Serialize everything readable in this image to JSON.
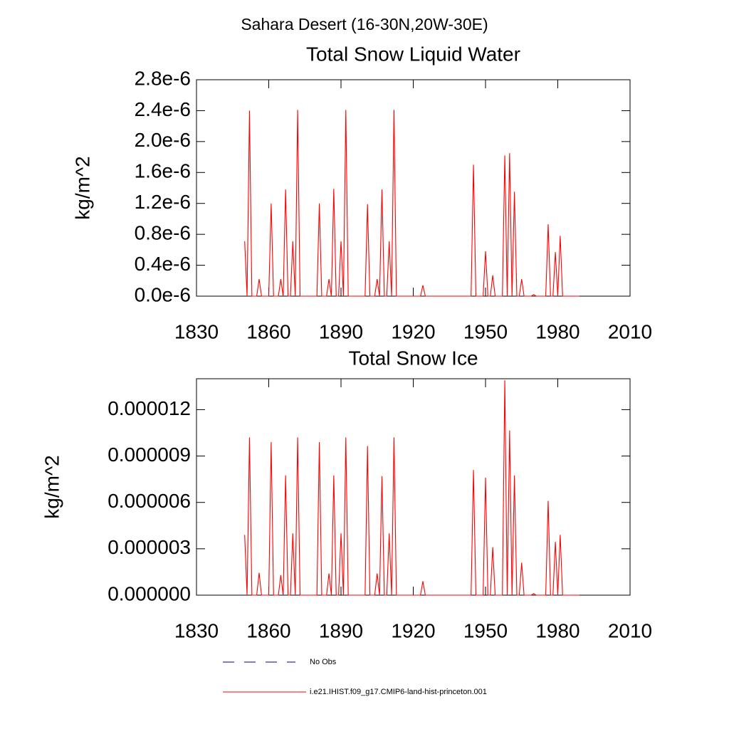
{
  "title": "Sahara Desert (16-30N,20W-30E)",
  "legend": {
    "entries": [
      {
        "name": "No Obs",
        "color": "#000080",
        "style": "dashed"
      },
      {
        "name": "i.e21.IHIST.f09_g17.CMIP6-land-hist-princeton.001",
        "color": "#ff0000",
        "style": "solid"
      }
    ]
  },
  "chart_data": [
    {
      "type": "line",
      "title": "Total Snow Liquid Water",
      "y_label": "kg/m^2",
      "color": "#ff0000",
      "xlim": [
        1830,
        2010
      ],
      "xticks": [
        1830,
        1860,
        1890,
        1920,
        1950,
        1980,
        2010
      ],
      "ylim": [
        0,
        2.8e-06
      ],
      "yticks": [
        {
          "value": 0,
          "label": "0.0e-6"
        },
        {
          "value": 4e-07,
          "label": "0.4e-6"
        },
        {
          "value": 8e-07,
          "label": "0.8e-6"
        },
        {
          "value": 1.2e-06,
          "label": "1.2e-6"
        },
        {
          "value": 1.6e-06,
          "label": "1.6e-6"
        },
        {
          "value": 2e-06,
          "label": "2.0e-6"
        },
        {
          "value": 2.4e-06,
          "label": "2.4e-6"
        },
        {
          "value": 2.8e-06,
          "label": "2.8e-6"
        }
      ],
      "x": [
        1850,
        1851,
        1852,
        1853,
        1854,
        1855,
        1856,
        1857,
        1858,
        1859,
        1860,
        1861,
        1862,
        1863,
        1864,
        1865,
        1866,
        1867,
        1868,
        1869,
        1870,
        1871,
        1872,
        1873,
        1874,
        1875,
        1876,
        1877,
        1878,
        1879,
        1880,
        1881,
        1882,
        1883,
        1884,
        1885,
        1886,
        1887,
        1888,
        1889,
        1890,
        1891,
        1892,
        1893,
        1894,
        1895,
        1896,
        1897,
        1898,
        1899,
        1900,
        1901,
        1902,
        1903,
        1904,
        1905,
        1906,
        1907,
        1908,
        1909,
        1910,
        1911,
        1912,
        1913,
        1914,
        1915,
        1916,
        1917,
        1918,
        1919,
        1920,
        1921,
        1922,
        1923,
        1924,
        1925,
        1926,
        1927,
        1928,
        1929,
        1930,
        1931,
        1932,
        1933,
        1934,
        1935,
        1936,
        1937,
        1938,
        1939,
        1940,
        1941,
        1942,
        1943,
        1944,
        1945,
        1946,
        1947,
        1948,
        1949,
        1950,
        1951,
        1952,
        1953,
        1954,
        1955,
        1956,
        1957,
        1958,
        1959,
        1960,
        1961,
        1962,
        1963,
        1964,
        1965,
        1966,
        1967,
        1968,
        1969,
        1970,
        1971,
        1972,
        1973,
        1974,
        1975,
        1976,
        1977,
        1978,
        1979,
        1980,
        1981,
        1982,
        1983,
        1984,
        1985,
        1986,
        1987,
        1988,
        1989
      ],
      "values": [
        7.1e-07,
        0,
        2.4e-06,
        0,
        0,
        0,
        2.2e-07,
        0,
        0,
        0,
        0,
        1.2e-06,
        0,
        0,
        0,
        2.2e-07,
        0,
        1.38e-06,
        0,
        0,
        7.1e-07,
        0,
        2.41e-06,
        0,
        0,
        0,
        0,
        0,
        0,
        0,
        0,
        1.2e-06,
        0,
        0,
        0,
        2.2e-07,
        0,
        1.39e-06,
        0,
        0,
        7.1e-07,
        0,
        2.41e-06,
        0,
        0,
        0,
        0,
        0,
        0,
        0,
        0,
        1.19e-06,
        0,
        0,
        0,
        2.2e-07,
        0,
        1.38e-06,
        0,
        0,
        7.1e-07,
        0,
        2.41e-06,
        0,
        0,
        0,
        0,
        0,
        0,
        0,
        0,
        0,
        0,
        0,
        1.4e-07,
        0,
        0,
        0,
        0,
        0,
        0,
        0,
        0,
        0,
        0,
        0,
        0,
        0,
        0,
        0,
        0,
        0,
        0,
        0,
        0,
        1.7e-06,
        0,
        0,
        0,
        0,
        5.8e-07,
        0,
        0,
        2.7e-07,
        0,
        0,
        0,
        0,
        1.82e-06,
        0,
        1.85e-06,
        0,
        1.35e-06,
        0,
        0,
        2.2e-07,
        0,
        0,
        0,
        0,
        2e-08,
        0,
        0,
        0,
        0,
        0,
        9.3e-07,
        0,
        0,
        5.7e-07,
        0,
        7.8e-07,
        0,
        0,
        0,
        0,
        0,
        0,
        0,
        0
      ]
    },
    {
      "type": "line",
      "title": "Total Snow Ice",
      "y_label": "kg/m^2",
      "color": "#ff0000",
      "xlim": [
        1830,
        2010
      ],
      "xticks": [
        1830,
        1860,
        1890,
        1920,
        1950,
        1980,
        2010
      ],
      "ylim": [
        0,
        1.4e-05
      ],
      "yticks": [
        {
          "value": 0,
          "label": "0.000000"
        },
        {
          "value": 3e-06,
          "label": "0.000003"
        },
        {
          "value": 6e-06,
          "label": "0.000006"
        },
        {
          "value": 9e-06,
          "label": "0.000009"
        },
        {
          "value": 1.2e-05,
          "label": "0.000012"
        }
      ],
      "x": [
        1850,
        1851,
        1852,
        1853,
        1854,
        1855,
        1856,
        1857,
        1858,
        1859,
        1860,
        1861,
        1862,
        1863,
        1864,
        1865,
        1866,
        1867,
        1868,
        1869,
        1870,
        1871,
        1872,
        1873,
        1874,
        1875,
        1876,
        1877,
        1878,
        1879,
        1880,
        1881,
        1882,
        1883,
        1884,
        1885,
        1886,
        1887,
        1888,
        1889,
        1890,
        1891,
        1892,
        1893,
        1894,
        1895,
        1896,
        1897,
        1898,
        1899,
        1900,
        1901,
        1902,
        1903,
        1904,
        1905,
        1906,
        1907,
        1908,
        1909,
        1910,
        1911,
        1912,
        1913,
        1914,
        1915,
        1916,
        1917,
        1918,
        1919,
        1920,
        1921,
        1922,
        1923,
        1924,
        1925,
        1926,
        1927,
        1928,
        1929,
        1930,
        1931,
        1932,
        1933,
        1934,
        1935,
        1936,
        1937,
        1938,
        1939,
        1940,
        1941,
        1942,
        1943,
        1944,
        1945,
        1946,
        1947,
        1948,
        1949,
        1950,
        1951,
        1952,
        1953,
        1954,
        1955,
        1956,
        1957,
        1958,
        1959,
        1960,
        1961,
        1962,
        1963,
        1964,
        1965,
        1966,
        1967,
        1968,
        1969,
        1970,
        1971,
        1972,
        1973,
        1974,
        1975,
        1976,
        1977,
        1978,
        1979,
        1980,
        1981,
        1982,
        1983,
        1984,
        1985,
        1986,
        1987,
        1988,
        1989
      ],
      "values": [
        3.9e-06,
        0,
        1.02e-05,
        0,
        0,
        0,
        1.45e-06,
        0,
        0,
        0,
        0,
        9.9e-06,
        0,
        0,
        0,
        1.3e-06,
        0,
        7.75e-06,
        0,
        0,
        4e-06,
        0,
        1.02e-05,
        0,
        0,
        0,
        0,
        0,
        0,
        0,
        0,
        9.9e-06,
        0,
        0,
        0,
        1.4e-06,
        0,
        7.75e-06,
        0,
        0,
        4e-06,
        0,
        1.02e-05,
        0,
        0,
        0,
        0,
        0,
        0,
        0,
        0,
        9.65e-06,
        0,
        0,
        0,
        1.4e-06,
        0,
        7.7e-06,
        0,
        0,
        4e-06,
        0,
        1.02e-05,
        0,
        0,
        0,
        0,
        0,
        0,
        0,
        0,
        0,
        0,
        0,
        9e-07,
        0,
        0,
        0,
        0,
        0,
        0,
        0,
        0,
        0,
        0,
        0,
        0,
        0,
        0,
        0,
        0,
        0,
        0,
        0,
        0,
        8.1e-06,
        0,
        0,
        0,
        0,
        7.6e-06,
        0,
        0,
        3.1e-06,
        0,
        0,
        0,
        0,
        1.39e-05,
        0,
        1.065e-05,
        0,
        7.75e-06,
        0,
        0,
        2.1e-06,
        0,
        0,
        0,
        0,
        1e-07,
        0,
        0,
        0,
        0,
        0,
        6.1e-06,
        0,
        0,
        3.45e-06,
        0,
        3.9e-06,
        0,
        0,
        0,
        0,
        0,
        0,
        0,
        0
      ]
    }
  ]
}
